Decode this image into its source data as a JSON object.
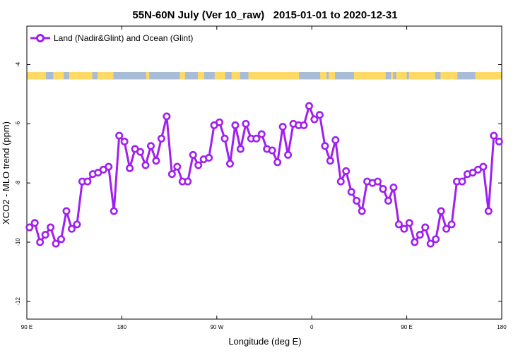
{
  "chart_data": {
    "type": "line",
    "title": "55N-60N July (Ver 10_raw)   2015-01-01 to 2020-12-31",
    "xlabel": "Longitude (deg E)",
    "ylabel": "XCO2 - MLO trend (ppm)",
    "xlim": [
      90,
      540
    ],
    "ylim": [
      -12.6,
      -2.7
    ],
    "x_ticks": [
      {
        "value": 90,
        "label": "90 E"
      },
      {
        "value": 180,
        "label": "180"
      },
      {
        "value": 270,
        "label": "90 W"
      },
      {
        "value": 360,
        "label": "0"
      },
      {
        "value": 450,
        "label": "90 E"
      },
      {
        "value": 540,
        "label": "180"
      }
    ],
    "y_ticks": [
      {
        "value": -4,
        "label": "-4"
      },
      {
        "value": -6,
        "label": "-6"
      },
      {
        "value": -8,
        "label": "-8"
      },
      {
        "value": -10,
        "label": "-10"
      },
      {
        "value": -12,
        "label": "-12"
      }
    ],
    "legend_position": "top-left",
    "land_ocean_strip": {
      "ymin": -4.5,
      "ymax": -4.25,
      "land_color": "#FFD966",
      "ocean_color": "#A8BCD8",
      "land_ranges": [
        [
          90,
          108
        ],
        [
          115,
          125
        ],
        [
          130,
          152
        ],
        [
          157,
          172
        ],
        [
          203,
          206
        ],
        [
          235,
          240
        ],
        [
          252,
          258
        ],
        [
          268,
          278
        ],
        [
          284,
          292
        ],
        [
          300,
          348
        ],
        [
          368,
          374
        ],
        [
          376,
          382
        ],
        [
          400,
          430
        ],
        [
          435,
          437
        ],
        [
          440,
          450
        ],
        [
          452,
          477
        ],
        [
          482,
          498
        ],
        [
          515,
          540
        ]
      ]
    },
    "series": [
      {
        "name": "Land (Nadir&Glint) and Ocean (Glint)",
        "color": "#A020F0",
        "x": [
          92.5,
          97.5,
          102.5,
          107.5,
          112.5,
          117.5,
          122.5,
          127.5,
          132.5,
          137.5,
          142.5,
          147.5,
          152.5,
          157.5,
          162.5,
          167.5,
          172.5,
          177.5,
          182.5,
          187.5,
          192.5,
          197.5,
          202.5,
          207.5,
          212.5,
          217.5,
          222.5,
          227.5,
          232.5,
          237.5,
          242.5,
          247.5,
          252.5,
          257.5,
          262.5,
          267.5,
          272.5,
          277.5,
          282.5,
          287.5,
          292.5,
          297.5,
          302.5,
          307.5,
          312.5,
          317.5,
          322.5,
          327.5,
          332.5,
          337.5,
          342.5,
          347.5,
          352.5,
          357.5,
          362.5,
          367.5,
          372.5,
          377.5,
          382.5,
          387.5,
          392.5,
          397.5,
          402.5,
          407.5,
          412.5,
          417.5,
          422.5,
          427.5,
          432.5,
          437.5,
          442.5,
          447.5,
          452.5,
          457.5,
          462.5,
          467.5,
          472.5,
          477.5,
          482.5,
          487.5,
          492.5,
          497.5,
          502.5,
          507.5,
          512.5,
          517.5,
          522.5,
          527.5,
          532.5,
          537.5
        ],
        "values": [
          -9.5,
          -9.35,
          -10.0,
          -9.75,
          -9.5,
          -10.05,
          -9.9,
          -8.95,
          -9.55,
          -9.4,
          -7.95,
          -7.95,
          -7.7,
          -7.65,
          -7.55,
          -7.45,
          -8.95,
          -6.4,
          -6.6,
          -7.5,
          -6.85,
          -6.95,
          -7.4,
          -6.75,
          -7.25,
          -6.5,
          -5.75,
          -7.7,
          -7.45,
          -7.95,
          -7.95,
          -7.05,
          -7.4,
          -7.2,
          -7.15,
          -6.05,
          -5.95,
          -6.5,
          -7.35,
          -6.05,
          -6.85,
          -6.0,
          -6.5,
          -6.5,
          -6.35,
          -6.85,
          -6.9,
          -7.3,
          -6.1,
          -7.05,
          -6.0,
          -6.05,
          -6.05,
          -5.4,
          -5.85,
          -5.7,
          -6.75,
          -7.25,
          -6.55,
          -7.95,
          -7.6,
          -8.3,
          -8.6,
          -8.95,
          -7.95,
          -8.0,
          -7.95,
          -8.2,
          -8.6,
          -8.15,
          -9.4,
          -9.55,
          -9.35,
          -10.0,
          -9.75,
          -9.5,
          -10.05,
          -9.9,
          -8.95,
          -9.55,
          -9.4,
          -7.95,
          -7.95,
          -7.7,
          -7.65,
          -7.55,
          -7.45,
          -8.95,
          -6.4,
          -6.6
        ]
      }
    ]
  }
}
